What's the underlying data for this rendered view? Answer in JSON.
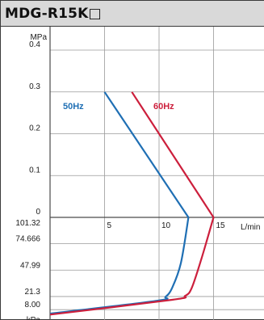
{
  "chart_data": {
    "type": "line",
    "title": "MDG-R15K□",
    "x_axis": {
      "label": "L/min",
      "ticks": [
        "5",
        "10",
        "15"
      ],
      "range": [
        0,
        20
      ]
    },
    "y_axis_upper": {
      "unit": "MPa",
      "ticks": [
        "0.4",
        "0.3",
        "0.2",
        "0.1",
        "0"
      ],
      "range": [
        0,
        0.4
      ]
    },
    "y_axis_lower": {
      "unit": "kPa",
      "ticks": [
        "101.32",
        "74.666",
        "47.99",
        "21.3",
        "8.00"
      ],
      "range": [
        0,
        101.32
      ]
    },
    "grid": true,
    "series": [
      {
        "name": "50Hz",
        "color": "#1f6fb4",
        "pressure_MPa": [
          [
            5.0,
            0.3
          ],
          [
            12.7,
            0.0
          ]
        ],
        "vacuum_kPa": [
          [
            12.7,
            101.32
          ],
          [
            12.0,
            55.0
          ],
          [
            11.2,
            30.0
          ],
          [
            10.6,
            21.0
          ],
          [
            9.8,
            17.0
          ],
          [
            0.0,
            4.0
          ]
        ]
      },
      {
        "name": "60Hz",
        "color": "#cc1f3c",
        "pressure_MPa": [
          [
            7.5,
            0.3
          ],
          [
            15.0,
            0.0
          ]
        ],
        "vacuum_kPa": [
          [
            15.0,
            101.32
          ],
          [
            13.9,
            60.0
          ],
          [
            13.0,
            30.0
          ],
          [
            12.4,
            22.0
          ],
          [
            11.2,
            18.0
          ],
          [
            0.0,
            3.0
          ]
        ]
      }
    ]
  }
}
